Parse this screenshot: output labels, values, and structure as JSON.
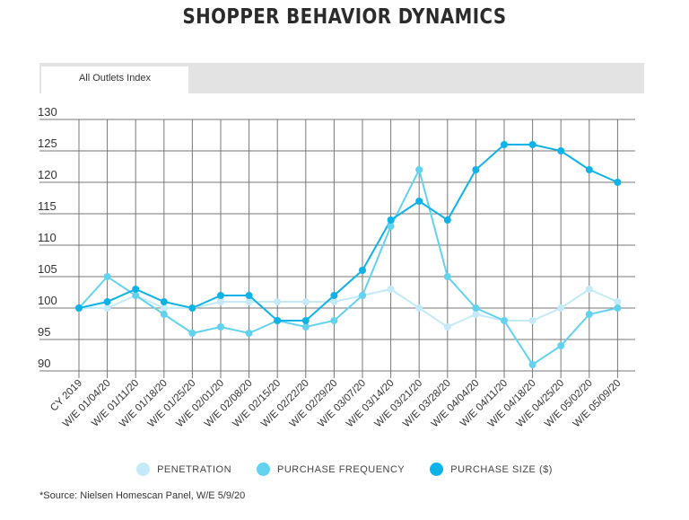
{
  "colors": {
    "penetration": "#c4eaf8",
    "purchase_frequency": "#62d2ef",
    "purchase_size": "#0fb2e6",
    "grid": "#777777"
  },
  "tab": {
    "label": "All Outlets Index"
  },
  "source": "*Source: Nielsen Homescan Panel, W/E 5/9/20",
  "chart_data": {
    "type": "line",
    "title": "SHOPPER BEHAVIOR DYNAMICS",
    "xlabel": "",
    "ylabel": "",
    "ylim": [
      90,
      130
    ],
    "yticks": [
      90,
      95,
      100,
      105,
      110,
      115,
      120,
      125,
      130
    ],
    "grid": true,
    "legend_position": "bottom",
    "categories": [
      "CY 2019",
      "W/E 01/04/20",
      "W/E 01/11/20",
      "W/E 01/18/20",
      "W/E 01/25/20",
      "W/E 02/01/20",
      "W/E 02/08/20",
      "W/E 02/15/20",
      "W/E 02/22/20",
      "W/E 02/29/20",
      "W/E 03/07/20",
      "W/E 03/14/20",
      "W/E 03/21/20",
      "W/E 03/28/20",
      "W/E 04/04/20",
      "W/E 04/11/20",
      "W/E 04/18/20",
      "W/E 04/25/20",
      "W/E 05/02/20",
      "W/E 05/09/20"
    ],
    "series": [
      {
        "name": "PENETRATION",
        "color_key": "penetration",
        "values": [
          100,
          100,
          102,
          100,
          100,
          101,
          101,
          101,
          101,
          101,
          102,
          103,
          100,
          97,
          99,
          98,
          98,
          100,
          103,
          101
        ]
      },
      {
        "name": "PURCHASE FREQUENCY",
        "color_key": "purchase_frequency",
        "values": [
          100,
          105,
          102,
          99,
          96,
          97,
          96,
          98,
          97,
          98,
          102,
          113,
          122,
          105,
          100,
          98,
          91,
          94,
          99,
          100
        ]
      },
      {
        "name": "PURCHASE SIZE ($)",
        "color_key": "purchase_size",
        "values": [
          100,
          101,
          103,
          101,
          100,
          102,
          102,
          98,
          98,
          102,
          106,
          114,
          117,
          114,
          122,
          126,
          126,
          125,
          122,
          120
        ]
      }
    ]
  }
}
